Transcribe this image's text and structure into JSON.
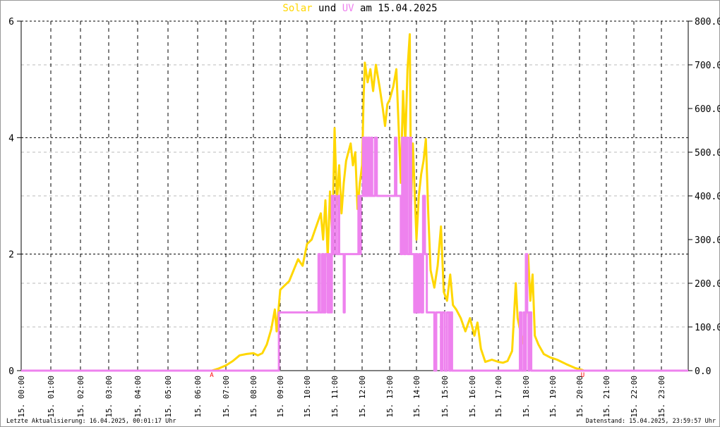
{
  "chart_data": {
    "type": "line",
    "title": {
      "part1": "Solar",
      "part2": " und ",
      "part3": "UV",
      "part4": " am 15.04.2025"
    },
    "colors": {
      "solar": "#ffd700",
      "uv": "#ee82ee",
      "markers": "#ff0000"
    },
    "y_left": {
      "range": [
        0,
        6
      ],
      "ticks": [
        "0",
        "2",
        "4",
        "6"
      ]
    },
    "y_right": {
      "range": [
        0,
        800
      ],
      "ticks": [
        "0.0",
        "100.0",
        "200.0",
        "300.0",
        "400.0",
        "500.0",
        "600.0",
        "700.0",
        "800.0"
      ]
    },
    "x_ticks": [
      "15. 00:00",
      "15. 01:00",
      "15. 02:00",
      "15. 03:00",
      "15. 04:00",
      "15. 05:00",
      "15. 06:00",
      "15. 07:00",
      "15. 08:00",
      "15. 09:00",
      "15. 10:00",
      "15. 11:00",
      "15. 12:00",
      "15. 13:00",
      "15. 14:00",
      "15. 15:00",
      "15. 16:00",
      "15. 17:00",
      "15. 18:00",
      "15. 19:00",
      "15. 20:00",
      "15. 21:00",
      "15. 22:00",
      "15. 23:00"
    ],
    "grid": true,
    "markers": [
      {
        "label": "A",
        "time": "06:30"
      },
      {
        "label": "U",
        "time": "20:07"
      }
    ],
    "series": [
      {
        "name": "Solar",
        "axis": "right",
        "points": [
          [
            "00:00",
            0
          ],
          [
            "06:30",
            0
          ],
          [
            "06:45",
            5
          ],
          [
            "07:00",
            12
          ],
          [
            "07:15",
            22
          ],
          [
            "07:30",
            35
          ],
          [
            "07:45",
            38
          ],
          [
            "08:00",
            40
          ],
          [
            "08:10",
            35
          ],
          [
            "08:20",
            40
          ],
          [
            "08:30",
            60
          ],
          [
            "08:40",
            95
          ],
          [
            "08:48",
            140
          ],
          [
            "08:52",
            90
          ],
          [
            "09:00",
            185
          ],
          [
            "09:10",
            195
          ],
          [
            "09:20",
            205
          ],
          [
            "09:30",
            230
          ],
          [
            "09:40",
            255
          ],
          [
            "09:50",
            240
          ],
          [
            "10:00",
            290
          ],
          [
            "10:10",
            300
          ],
          [
            "10:20",
            330
          ],
          [
            "10:30",
            360
          ],
          [
            "10:35",
            300
          ],
          [
            "10:40",
            390
          ],
          [
            "10:45",
            260
          ],
          [
            "10:50",
            410
          ],
          [
            "10:55",
            300
          ],
          [
            "11:00",
            555
          ],
          [
            "11:05",
            380
          ],
          [
            "11:10",
            470
          ],
          [
            "11:15",
            360
          ],
          [
            "11:20",
            430
          ],
          [
            "11:25",
            480
          ],
          [
            "11:30",
            500
          ],
          [
            "11:35",
            520
          ],
          [
            "11:40",
            470
          ],
          [
            "11:45",
            500
          ],
          [
            "11:50",
            370
          ],
          [
            "11:55",
            430
          ],
          [
            "12:00",
            470
          ],
          [
            "12:03",
            620
          ],
          [
            "12:06",
            705
          ],
          [
            "12:12",
            660
          ],
          [
            "12:18",
            690
          ],
          [
            "12:24",
            640
          ],
          [
            "12:30",
            700
          ],
          [
            "12:38",
            650
          ],
          [
            "12:45",
            600
          ],
          [
            "12:50",
            560
          ],
          [
            "12:55",
            610
          ],
          [
            "13:00",
            620
          ],
          [
            "13:08",
            650
          ],
          [
            "13:15",
            690
          ],
          [
            "13:20",
            560
          ],
          [
            "13:25",
            430
          ],
          [
            "13:30",
            640
          ],
          [
            "13:35",
            520
          ],
          [
            "13:40",
            690
          ],
          [
            "13:45",
            770
          ],
          [
            "13:48",
            380
          ],
          [
            "13:52",
            520
          ],
          [
            "14:00",
            300
          ],
          [
            "14:05",
            400
          ],
          [
            "14:10",
            450
          ],
          [
            "14:15",
            480
          ],
          [
            "14:20",
            530
          ],
          [
            "14:25",
            360
          ],
          [
            "14:30",
            230
          ],
          [
            "14:38",
            190
          ],
          [
            "14:45",
            240
          ],
          [
            "14:52",
            330
          ],
          [
            "14:58",
            180
          ],
          [
            "15:05",
            160
          ],
          [
            "15:12",
            220
          ],
          [
            "15:18",
            150
          ],
          [
            "15:25",
            140
          ],
          [
            "15:35",
            120
          ],
          [
            "15:45",
            90
          ],
          [
            "15:55",
            120
          ],
          [
            "16:05",
            80
          ],
          [
            "16:12",
            110
          ],
          [
            "16:20",
            50
          ],
          [
            "16:30",
            20
          ],
          [
            "16:45",
            25
          ],
          [
            "17:00",
            20
          ],
          [
            "17:10",
            18
          ],
          [
            "17:20",
            22
          ],
          [
            "17:30",
            45
          ],
          [
            "17:38",
            200
          ],
          [
            "17:42",
            120
          ],
          [
            "17:48",
            90
          ],
          [
            "17:55",
            60
          ],
          [
            "18:00",
            120
          ],
          [
            "18:05",
            265
          ],
          [
            "18:10",
            160
          ],
          [
            "18:15",
            220
          ],
          [
            "18:20",
            80
          ],
          [
            "18:28",
            60
          ],
          [
            "18:40",
            38
          ],
          [
            "18:55",
            30
          ],
          [
            "19:10",
            25
          ],
          [
            "19:30",
            15
          ],
          [
            "19:50",
            6
          ],
          [
            "20:05",
            2
          ],
          [
            "20:10",
            0
          ],
          [
            "24:00",
            0
          ]
        ]
      },
      {
        "name": "UV",
        "axis": "left",
        "points": [
          [
            "00:00",
            0
          ],
          [
            "08:57",
            0
          ],
          [
            "08:57",
            1
          ],
          [
            "10:20",
            1
          ],
          [
            "10:25",
            2
          ],
          [
            "10:28",
            1
          ],
          [
            "10:33",
            2
          ],
          [
            "10:36",
            1
          ],
          [
            "10:40",
            2
          ],
          [
            "10:45",
            1
          ],
          [
            "10:48",
            2
          ],
          [
            "10:50",
            1
          ],
          [
            "10:54",
            3
          ],
          [
            "10:56",
            2
          ],
          [
            "10:58",
            3
          ],
          [
            "11:03",
            2
          ],
          [
            "11:08",
            3
          ],
          [
            "11:10",
            2
          ],
          [
            "11:20",
            1
          ],
          [
            "11:22",
            2
          ],
          [
            "11:50",
            2
          ],
          [
            "11:52",
            3
          ],
          [
            "11:55",
            2
          ],
          [
            "11:57",
            3
          ],
          [
            "12:00",
            3
          ],
          [
            "12:02",
            4
          ],
          [
            "12:05",
            3
          ],
          [
            "12:08",
            4
          ],
          [
            "12:10",
            3
          ],
          [
            "12:13",
            4
          ],
          [
            "12:16",
            3
          ],
          [
            "12:20",
            4
          ],
          [
            "12:22",
            3
          ],
          [
            "12:28",
            4
          ],
          [
            "12:32",
            3
          ],
          [
            "13:10",
            3
          ],
          [
            "13:12",
            4
          ],
          [
            "13:15",
            3
          ],
          [
            "13:25",
            2
          ],
          [
            "13:28",
            4
          ],
          [
            "13:32",
            2
          ],
          [
            "13:36",
            4
          ],
          [
            "13:40",
            2
          ],
          [
            "13:45",
            4
          ],
          [
            "13:48",
            2
          ],
          [
            "13:55",
            1
          ],
          [
            "13:58",
            2
          ],
          [
            "14:02",
            1
          ],
          [
            "14:06",
            2
          ],
          [
            "14:10",
            1
          ],
          [
            "14:14",
            3
          ],
          [
            "14:18",
            2
          ],
          [
            "14:22",
            1
          ],
          [
            "14:35",
            1
          ],
          [
            "14:38",
            0
          ],
          [
            "14:42",
            1
          ],
          [
            "14:50",
            1
          ],
          [
            "14:52",
            0
          ],
          [
            "14:55",
            1
          ],
          [
            "15:00",
            0
          ],
          [
            "15:05",
            1
          ],
          [
            "15:10",
            0
          ],
          [
            "15:13",
            1
          ],
          [
            "15:16",
            0
          ],
          [
            "17:45",
            0
          ],
          [
            "17:47",
            1
          ],
          [
            "17:50",
            0
          ],
          [
            "17:55",
            1
          ],
          [
            "17:58",
            0
          ],
          [
            "18:00",
            2
          ],
          [
            "18:03",
            1
          ],
          [
            "18:06",
            0
          ],
          [
            "18:08",
            1
          ],
          [
            "18:12",
            0
          ],
          [
            "24:00",
            0
          ]
        ]
      }
    ]
  },
  "footer": {
    "left": "Letzte Aktualisierung: 16.04.2025, 00:01:17 Uhr",
    "right": "Datenstand: 15.04.2025, 23:59:57 Uhr"
  }
}
